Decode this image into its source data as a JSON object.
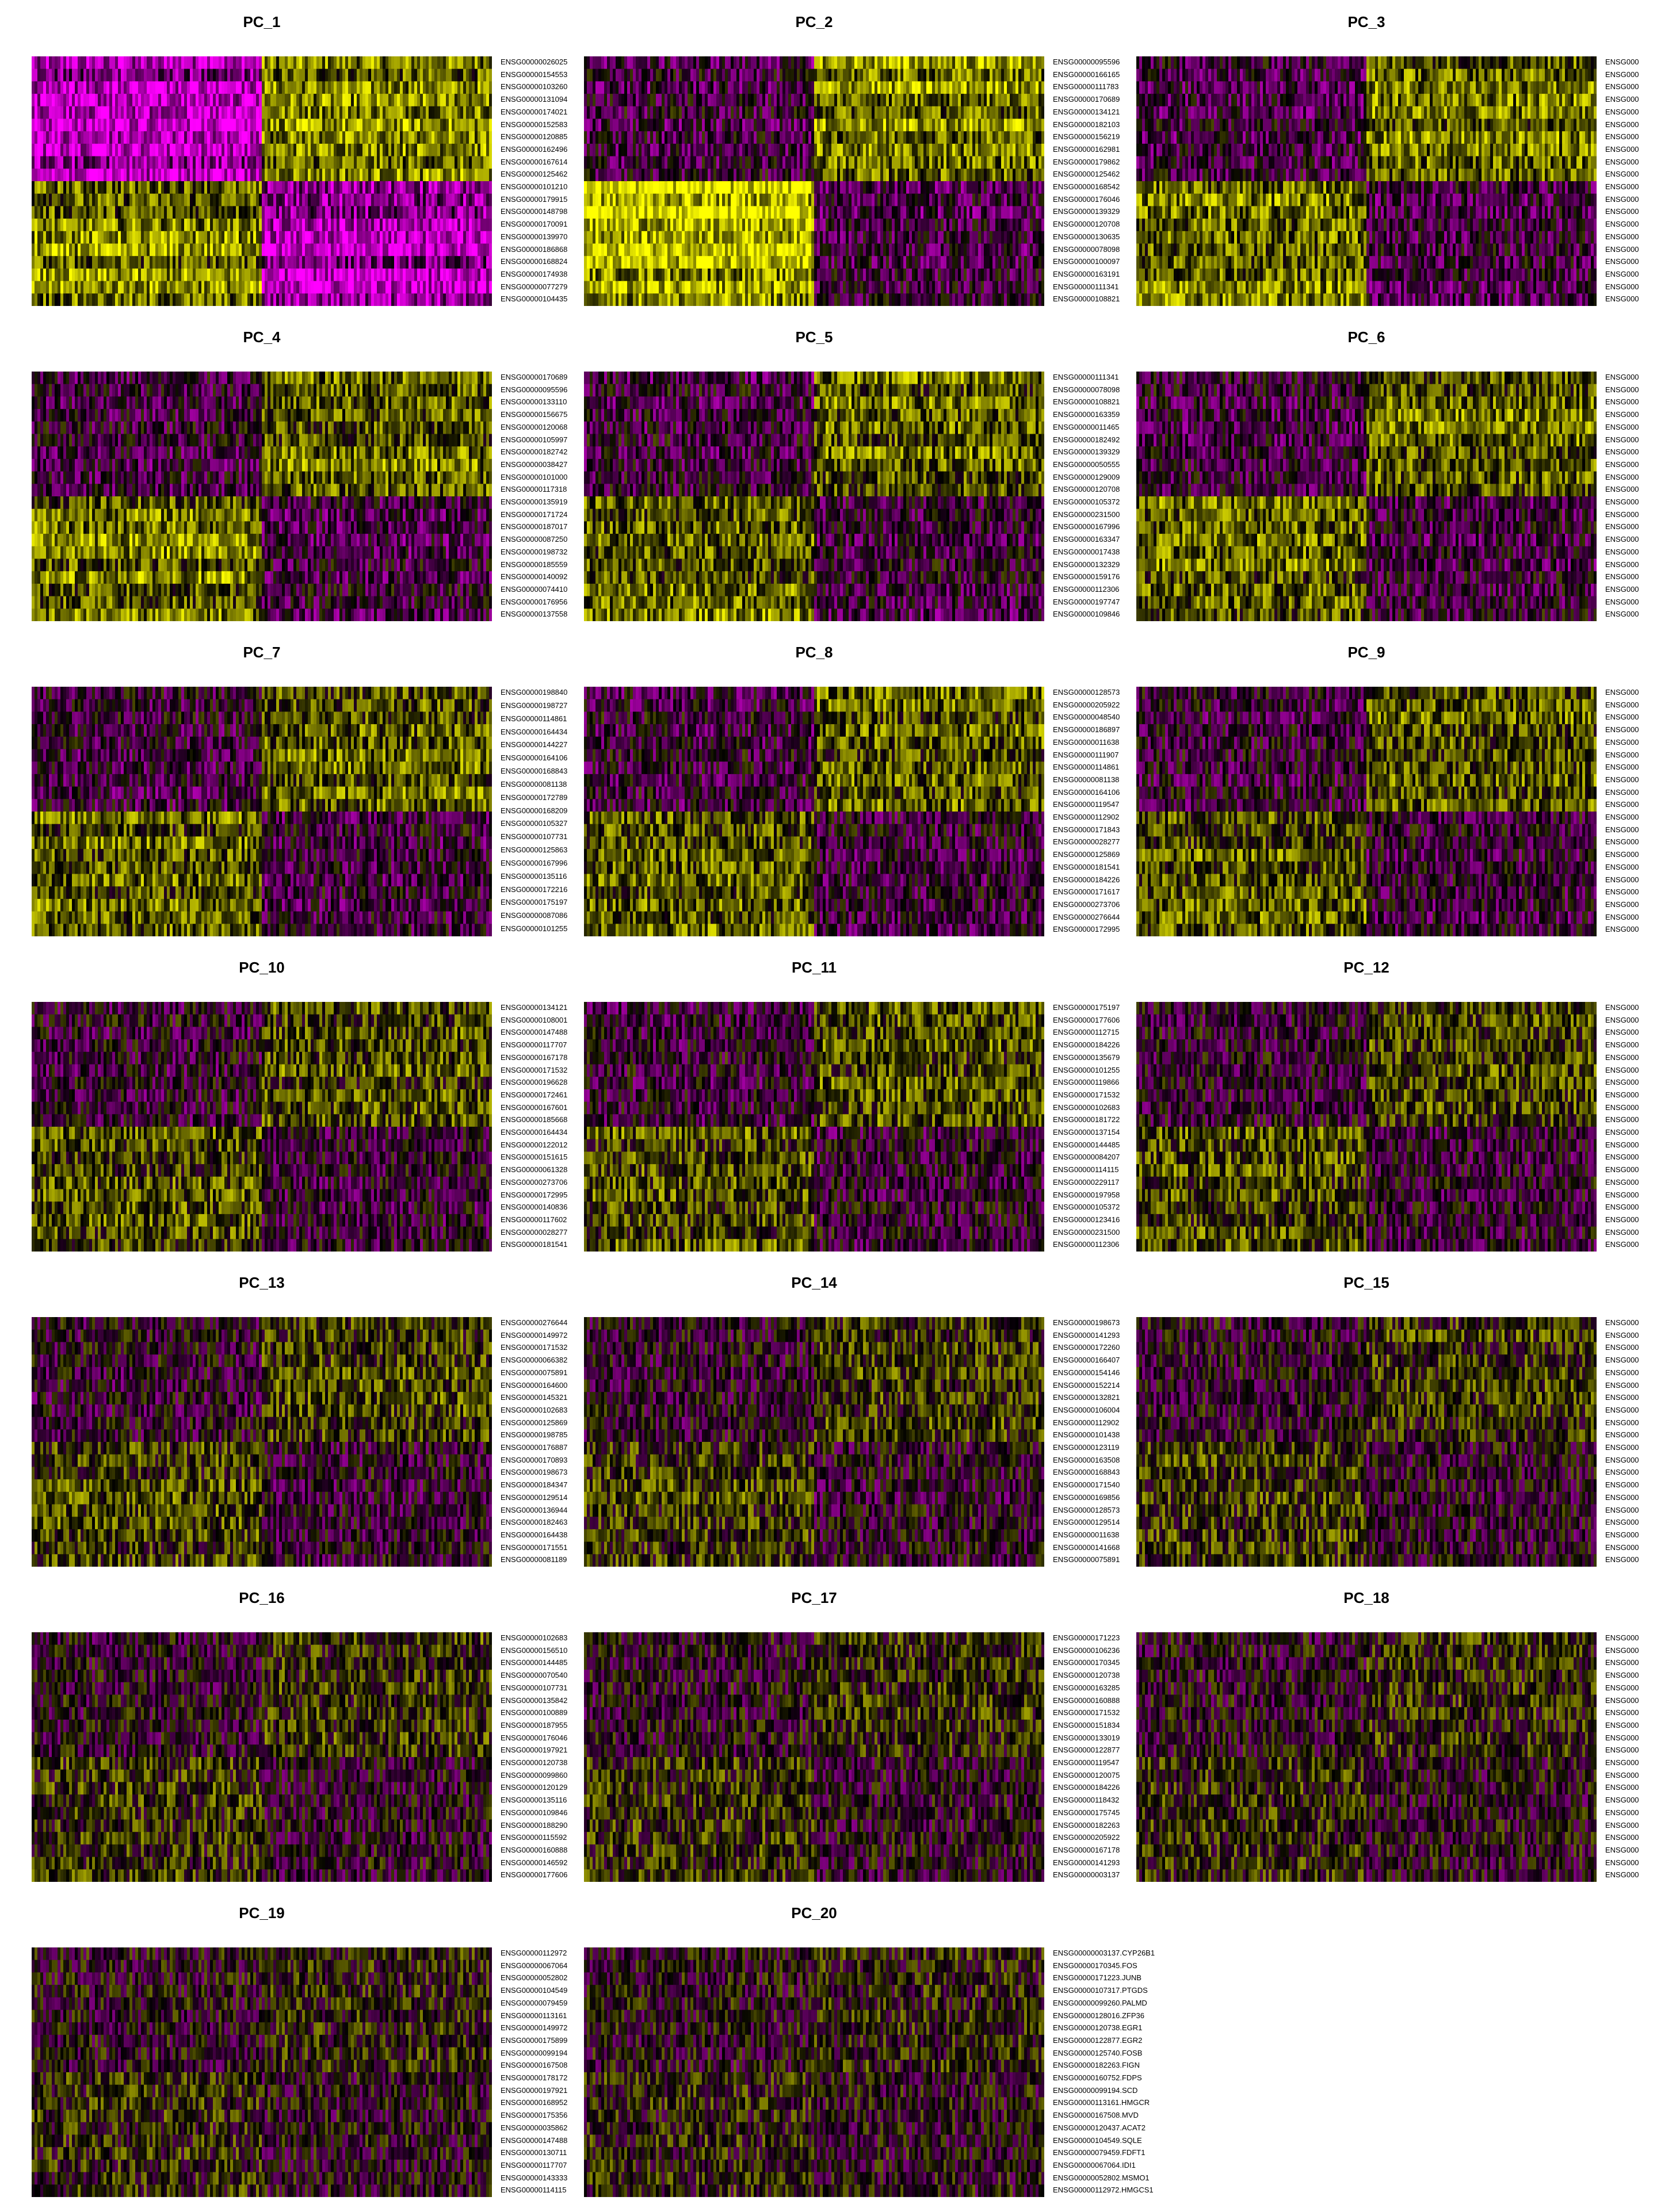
{
  "chart_data": [
    {
      "type": "heatmap",
      "title": "PC_1",
      "colors": {
        "low": "#ff00ff",
        "mid": "#000000",
        "high": "#ffff00"
      },
      "genes": [
        "ENSG00000026025",
        "ENSG00000154553",
        "ENSG00000103260",
        "ENSG00000131094",
        "ENSG00000174021",
        "ENSG00000152583",
        "ENSG00000120885",
        "ENSG00000162496",
        "ENSG00000167614",
        "ENSG00000125462",
        "ENSG00000101210",
        "ENSG00000179915",
        "ENSG00000148798",
        "ENSG00000170091",
        "ENSG00000139970",
        "ENSG00000186868",
        "ENSG00000168824",
        "ENSG00000174938",
        "ENSG00000077279",
        "ENSG00000104435"
      ]
    },
    {
      "type": "heatmap",
      "title": "PC_2",
      "colors": {
        "low": "#ff00ff",
        "mid": "#000000",
        "high": "#ffff00"
      },
      "genes": [
        "ENSG00000095596",
        "ENSG00000166165",
        "ENSG00000111783",
        "ENSG00000170689",
        "ENSG00000134121",
        "ENSG00000182103",
        "ENSG00000156219",
        "ENSG00000162981",
        "ENSG00000179862",
        "ENSG00000125462",
        "ENSG00000168542",
        "ENSG00000176046",
        "ENSG00000139329",
        "ENSG00000120708",
        "ENSG00000130635",
        "ENSG00000078098",
        "ENSG00000100097",
        "ENSG00000163191",
        "ENSG00000111341",
        "ENSG00000108821"
      ]
    },
    {
      "type": "heatmap",
      "title": "PC_3",
      "colors": {
        "low": "#ff00ff",
        "mid": "#000000",
        "high": "#ffff00"
      },
      "genes": [
        "ENSG000",
        "ENSG000",
        "ENSG000",
        "ENSG000",
        "ENSG000",
        "ENSG000",
        "ENSG000",
        "ENSG000",
        "ENSG000",
        "ENSG000",
        "ENSG000",
        "ENSG000",
        "ENSG000",
        "ENSG000",
        "ENSG000",
        "ENSG000",
        "ENSG000",
        "ENSG000",
        "ENSG000",
        "ENSG000"
      ]
    },
    {
      "type": "heatmap",
      "title": "PC_4",
      "colors": {
        "low": "#ff00ff",
        "mid": "#000000",
        "high": "#ffff00"
      },
      "genes": [
        "ENSG00000170689",
        "ENSG00000095596",
        "ENSG00000133110",
        "ENSG00000156675",
        "ENSG00000120068",
        "ENSG00000105997",
        "ENSG00000182742",
        "ENSG00000038427",
        "ENSG00000101000",
        "ENSG00000117318",
        "ENSG00000135919",
        "ENSG00000171724",
        "ENSG00000187017",
        "ENSG00000087250",
        "ENSG00000198732",
        "ENSG00000185559",
        "ENSG00000140092",
        "ENSG00000074410",
        "ENSG00000176956",
        "ENSG00000137558"
      ]
    },
    {
      "type": "heatmap",
      "title": "PC_5",
      "colors": {
        "low": "#ff00ff",
        "mid": "#000000",
        "high": "#ffff00"
      },
      "genes": [
        "ENSG00000111341",
        "ENSG00000078098",
        "ENSG00000108821",
        "ENSG00000163359",
        "ENSG00000011465",
        "ENSG00000182492",
        "ENSG00000139329",
        "ENSG00000050555",
        "ENSG00000129009",
        "ENSG00000120708",
        "ENSG00000105372",
        "ENSG00000231500",
        "ENSG00000167996",
        "ENSG00000163347",
        "ENSG00000017438",
        "ENSG00000132329",
        "ENSG00000159176",
        "ENSG00000112306",
        "ENSG00000197747",
        "ENSG00000109846"
      ]
    },
    {
      "type": "heatmap",
      "title": "PC_6",
      "colors": {
        "low": "#ff00ff",
        "mid": "#000000",
        "high": "#ffff00"
      },
      "genes": [
        "ENSG000",
        "ENSG000",
        "ENSG000",
        "ENSG000",
        "ENSG000",
        "ENSG000",
        "ENSG000",
        "ENSG000",
        "ENSG000",
        "ENSG000",
        "ENSG000",
        "ENSG000",
        "ENSG000",
        "ENSG000",
        "ENSG000",
        "ENSG000",
        "ENSG000",
        "ENSG000",
        "ENSG000",
        "ENSG000"
      ]
    },
    {
      "type": "heatmap",
      "title": "PC_7",
      "colors": {
        "low": "#ff00ff",
        "mid": "#000000",
        "high": "#ffff00"
      },
      "genes": [
        "ENSG00000198840",
        "ENSG00000198727",
        "ENSG00000114861",
        "ENSG00000164434",
        "ENSG00000144227",
        "ENSG00000164106",
        "ENSG00000168843",
        "ENSG00000081138",
        "ENSG00000172789",
        "ENSG00000168209",
        "ENSG00000105327",
        "ENSG00000107731",
        "ENSG00000125863",
        "ENSG00000167996",
        "ENSG00000135116",
        "ENSG00000172216",
        "ENSG00000175197",
        "ENSG00000087086",
        "ENSG00000101255"
      ]
    },
    {
      "type": "heatmap",
      "title": "PC_8",
      "colors": {
        "low": "#ff00ff",
        "mid": "#000000",
        "high": "#ffff00"
      },
      "genes": [
        "ENSG00000128573",
        "ENSG00000205922",
        "ENSG00000048540",
        "ENSG00000186897",
        "ENSG00000011638",
        "ENSG00000111907",
        "ENSG00000114861",
        "ENSG00000081138",
        "ENSG00000164106",
        "ENSG00000119547",
        "ENSG00000112902",
        "ENSG00000171843",
        "ENSG00000028277",
        "ENSG00000125869",
        "ENSG00000181541",
        "ENSG00000184226",
        "ENSG00000171617",
        "ENSG00000273706",
        "ENSG00000276644",
        "ENSG00000172995"
      ]
    },
    {
      "type": "heatmap",
      "title": "PC_9",
      "colors": {
        "low": "#ff00ff",
        "mid": "#000000",
        "high": "#ffff00"
      },
      "genes": [
        "ENSG000",
        "ENSG000",
        "ENSG000",
        "ENSG000",
        "ENSG000",
        "ENSG000",
        "ENSG000",
        "ENSG000",
        "ENSG000",
        "ENSG000",
        "ENSG000",
        "ENSG000",
        "ENSG000",
        "ENSG000",
        "ENSG000",
        "ENSG000",
        "ENSG000",
        "ENSG000",
        "ENSG000",
        "ENSG000"
      ]
    },
    {
      "type": "heatmap",
      "title": "PC_10",
      "colors": {
        "low": "#ff00ff",
        "mid": "#000000",
        "high": "#ffff00"
      },
      "genes": [
        "ENSG00000134121",
        "ENSG00000108001",
        "ENSG00000147488",
        "ENSG00000117707",
        "ENSG00000167178",
        "ENSG00000171532",
        "ENSG00000196628",
        "ENSG00000172461",
        "ENSG00000167601",
        "ENSG00000185668",
        "ENSG00000164434",
        "ENSG00000122012",
        "ENSG00000151615",
        "ENSG00000061328",
        "ENSG00000273706",
        "ENSG00000172995",
        "ENSG00000140836",
        "ENSG00000117602",
        "ENSG00000028277",
        "ENSG00000181541"
      ]
    },
    {
      "type": "heatmap",
      "title": "PC_11",
      "colors": {
        "low": "#ff00ff",
        "mid": "#000000",
        "high": "#ffff00"
      },
      "genes": [
        "ENSG00000175197",
        "ENSG00000177606",
        "ENSG00000112715",
        "ENSG00000184226",
        "ENSG00000135679",
        "ENSG00000101255",
        "ENSG00000119866",
        "ENSG00000171532",
        "ENSG00000102683",
        "ENSG00000181722",
        "ENSG00000137154",
        "ENSG00000144485",
        "ENSG00000084207",
        "ENSG00000114115",
        "ENSG00000229117",
        "ENSG00000197958",
        "ENSG00000105372",
        "ENSG00000123416",
        "ENSG00000231500",
        "ENSG00000112306"
      ]
    },
    {
      "type": "heatmap",
      "title": "PC_12",
      "colors": {
        "low": "#ff00ff",
        "mid": "#000000",
        "high": "#ffff00"
      },
      "genes": [
        "ENSG000",
        "ENSG000",
        "ENSG000",
        "ENSG000",
        "ENSG000",
        "ENSG000",
        "ENSG000",
        "ENSG000",
        "ENSG000",
        "ENSG000",
        "ENSG000",
        "ENSG000",
        "ENSG000",
        "ENSG000",
        "ENSG000",
        "ENSG000",
        "ENSG000",
        "ENSG000",
        "ENSG000",
        "ENSG000"
      ]
    },
    {
      "type": "heatmap",
      "title": "PC_13",
      "colors": {
        "low": "#ff00ff",
        "mid": "#000000",
        "high": "#ffff00"
      },
      "genes": [
        "ENSG00000276644",
        "ENSG00000149972",
        "ENSG00000171532",
        "ENSG00000066382",
        "ENSG00000075891",
        "ENSG00000164600",
        "ENSG00000145321",
        "ENSG00000102683",
        "ENSG00000125869",
        "ENSG00000198785",
        "ENSG00000176887",
        "ENSG00000170893",
        "ENSG00000198673",
        "ENSG00000184347",
        "ENSG00000129514",
        "ENSG00000136944",
        "ENSG00000182463",
        "ENSG00000164438",
        "ENSG00000171551",
        "ENSG00000081189"
      ]
    },
    {
      "type": "heatmap",
      "title": "PC_14",
      "colors": {
        "low": "#ff00ff",
        "mid": "#000000",
        "high": "#ffff00"
      },
      "genes": [
        "ENSG00000198673",
        "ENSG00000141293",
        "ENSG00000172260",
        "ENSG00000166407",
        "ENSG00000154146",
        "ENSG00000152214",
        "ENSG00000132821",
        "ENSG00000106004",
        "ENSG00000112902",
        "ENSG00000101438",
        "ENSG00000123119",
        "ENSG00000163508",
        "ENSG00000168843",
        "ENSG00000171540",
        "ENSG00000169856",
        "ENSG00000128573",
        "ENSG00000129514",
        "ENSG00000011638",
        "ENSG00000141668",
        "ENSG00000075891"
      ]
    },
    {
      "type": "heatmap",
      "title": "PC_15",
      "colors": {
        "low": "#ff00ff",
        "mid": "#000000",
        "high": "#ffff00"
      },
      "genes": [
        "ENSG000",
        "ENSG000",
        "ENSG000",
        "ENSG000",
        "ENSG000",
        "ENSG000",
        "ENSG000",
        "ENSG000",
        "ENSG000",
        "ENSG000",
        "ENSG000",
        "ENSG000",
        "ENSG000",
        "ENSG000",
        "ENSG000",
        "ENSG000",
        "ENSG000",
        "ENSG000",
        "ENSG000",
        "ENSG000"
      ]
    },
    {
      "type": "heatmap",
      "title": "PC_16",
      "colors": {
        "low": "#ff00ff",
        "mid": "#000000",
        "high": "#ffff00"
      },
      "genes": [
        "ENSG00000102683",
        "ENSG00000156510",
        "ENSG00000144485",
        "ENSG00000070540",
        "ENSG00000107731",
        "ENSG00000135842",
        "ENSG00000100889",
        "ENSG00000187955",
        "ENSG00000176046",
        "ENSG00000197921",
        "ENSG00000120738",
        "ENSG00000099860",
        "ENSG00000120129",
        "ENSG00000135116",
        "ENSG00000109846",
        "ENSG00000188290",
        "ENSG00000115592",
        "ENSG00000160888",
        "ENSG00000146592",
        "ENSG00000177606"
      ]
    },
    {
      "type": "heatmap",
      "title": "PC_17",
      "colors": {
        "low": "#ff00ff",
        "mid": "#000000",
        "high": "#ffff00"
      },
      "genes": [
        "ENSG00000171223",
        "ENSG00000106236",
        "ENSG00000170345",
        "ENSG00000120738",
        "ENSG00000163285",
        "ENSG00000160888",
        "ENSG00000171532",
        "ENSG00000151834",
        "ENSG00000133019",
        "ENSG00000122877",
        "ENSG00000119547",
        "ENSG00000120075",
        "ENSG00000184226",
        "ENSG00000118432",
        "ENSG00000175745",
        "ENSG00000182263",
        "ENSG00000205922",
        "ENSG00000167178",
        "ENSG00000141293",
        "ENSG00000003137"
      ]
    },
    {
      "type": "heatmap",
      "title": "PC_18",
      "colors": {
        "low": "#ff00ff",
        "mid": "#000000",
        "high": "#ffff00"
      },
      "genes": [
        "ENSG000",
        "ENSG000",
        "ENSG000",
        "ENSG000",
        "ENSG000",
        "ENSG000",
        "ENSG000",
        "ENSG000",
        "ENSG000",
        "ENSG000",
        "ENSG000",
        "ENSG000",
        "ENSG000",
        "ENSG000",
        "ENSG000",
        "ENSG000",
        "ENSG000",
        "ENSG000",
        "ENSG000",
        "ENSG000"
      ]
    },
    {
      "type": "heatmap",
      "title": "PC_19",
      "colors": {
        "low": "#ff00ff",
        "mid": "#000000",
        "high": "#ffff00"
      },
      "genes": [
        "ENSG00000112972",
        "ENSG00000067064",
        "ENSG00000052802",
        "ENSG00000104549",
        "ENSG00000079459",
        "ENSG00000113161",
        "ENSG00000149972",
        "ENSG00000175899",
        "ENSG00000099194",
        "ENSG00000167508",
        "ENSG00000178172",
        "ENSG00000197921",
        "ENSG00000168952",
        "ENSG00000175356",
        "ENSG00000035862",
        "ENSG00000147488",
        "ENSG00000130711",
        "ENSG00000117707",
        "ENSG00000143333",
        "ENSG00000114115"
      ]
    },
    {
      "type": "heatmap",
      "title": "PC_20",
      "colors": {
        "low": "#ff00ff",
        "mid": "#000000",
        "high": "#ffff00"
      },
      "genes": [
        "ENSG00000003137.CYP26B1",
        "ENSG00000170345.FOS",
        "ENSG00000171223.JUNB",
        "ENSG00000107317.PTGDS",
        "ENSG00000099260.PALMD",
        "ENSG00000128016.ZFP36",
        "ENSG00000120738.EGR1",
        "ENSG00000122877.EGR2",
        "ENSG00000125740.FOSB",
        "ENSG00000182263.FIGN",
        "ENSG00000160752.FDPS",
        "ENSG00000099194.SCD",
        "ENSG00000113161.HMGCR",
        "ENSG00000167508.MVD",
        "ENSG00000120437.ACAT2",
        "ENSG00000104549.SQLE",
        "ENSG00000079459.FDFT1",
        "ENSG00000067064.IDI1",
        "ENSG00000052802.MSMO1",
        "ENSG00000112972.HMGCS1"
      ]
    }
  ]
}
